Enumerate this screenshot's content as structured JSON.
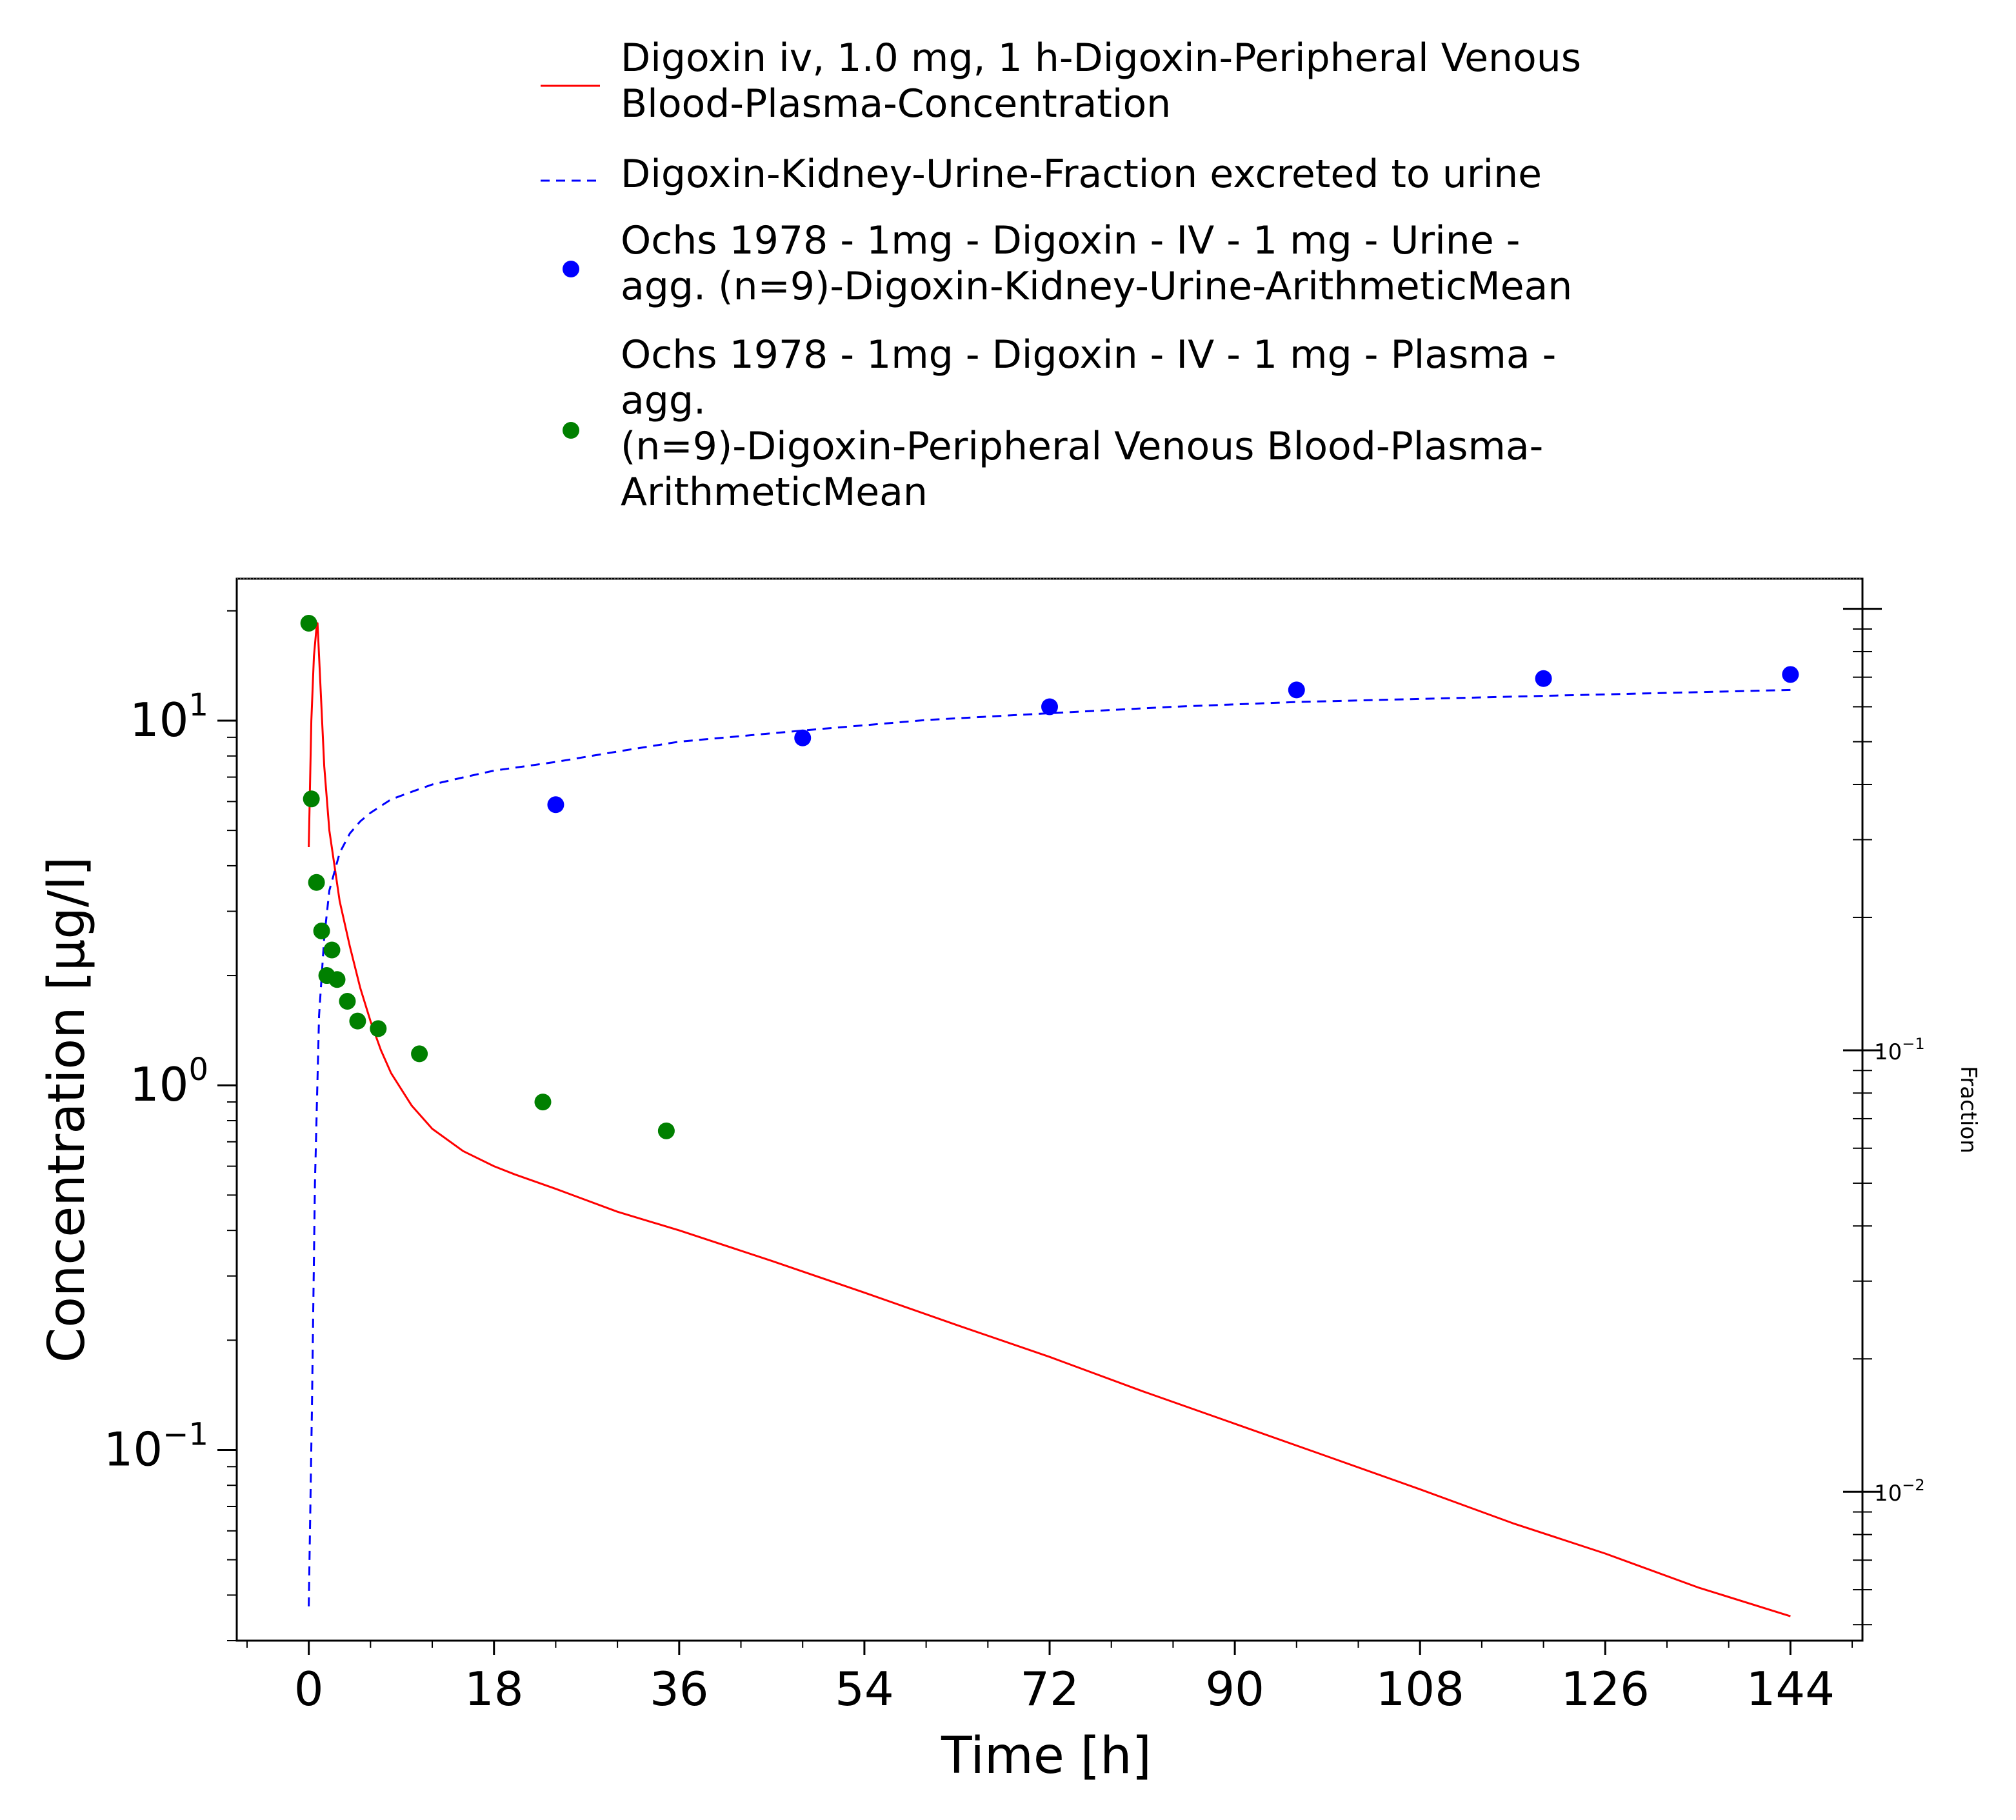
{
  "chart_data": {
    "type": "line",
    "title": "",
    "xlabel": "Time [h]",
    "ylabel": "Concentration [µg/l]",
    "y2label": "Fraction",
    "xlim": [
      -7,
      151
    ],
    "x_ticks": [
      "0",
      "18",
      "36",
      "54",
      "72",
      "90",
      "108",
      "126",
      "144"
    ],
    "y_scale": "log",
    "ylim": [
      0.03,
      24.5
    ],
    "y_ticks": [
      {
        "base": "10",
        "exp": "1",
        "value": 10
      },
      {
        "base": "10",
        "exp": "0",
        "value": 1
      },
      {
        "base": "10",
        "exp": "−1",
        "value": 0.1
      }
    ],
    "y2_scale": "log",
    "y2lim": [
      0.0046,
      1.17
    ],
    "y2_ticks": [
      {
        "base": "10",
        "exp": "−1",
        "value": 0.1
      },
      {
        "base": "10",
        "exp": "−2",
        "value": 0.01
      }
    ],
    "legend_position": "top",
    "legend": [
      {
        "lines": [
          "Digoxin iv, 1.0 mg, 1 h-Digoxin-Peripheral Venous",
          "Blood-Plasma-Concentration"
        ]
      },
      {
        "lines": [
          "Digoxin-Kidney-Urine-Fraction excreted to urine"
        ]
      },
      {
        "lines": [
          "Ochs 1978 - 1mg - Digoxin - IV - 1 mg - Urine -",
          "agg. (n=9)-Digoxin-Kidney-Urine-ArithmeticMean"
        ]
      },
      {
        "lines": [
          "Ochs 1978 - 1mg - Digoxin - IV - 1 mg - Plasma -",
          "agg.",
          "(n=9)-Digoxin-Peripheral Venous Blood-Plasma-",
          "ArithmeticMean"
        ]
      }
    ],
    "series": [
      {
        "kind": "line",
        "style": "solid",
        "color": "#ff0000",
        "axis": "left",
        "x": [
          0,
          0.25,
          0.5,
          0.75,
          0.85,
          1.0,
          1.5,
          2,
          3,
          4,
          5,
          6,
          7,
          8,
          10,
          12,
          15,
          18,
          20,
          24,
          30,
          36,
          45,
          54,
          63,
          72,
          81,
          90,
          99,
          108,
          117,
          126,
          135,
          144
        ],
        "y": [
          4.5,
          10,
          15,
          18,
          18.5,
          15,
          7.5,
          5.0,
          3.2,
          2.4,
          1.85,
          1.5,
          1.25,
          1.08,
          0.88,
          0.76,
          0.66,
          0.6,
          0.57,
          0.52,
          0.45,
          0.4,
          0.33,
          0.27,
          0.22,
          0.18,
          0.145,
          0.118,
          0.096,
          0.078,
          0.063,
          0.052,
          0.042,
          0.035
        ]
      },
      {
        "kind": "line",
        "style": "dashed",
        "color": "#0000ff",
        "axis": "right",
        "x": [
          0,
          0.3,
          0.6,
          1,
          1.5,
          2,
          3,
          4,
          5,
          6,
          8,
          10,
          12,
          15,
          18,
          24,
          30,
          36,
          48,
          60,
          72,
          84,
          96,
          108,
          120,
          132,
          144
        ],
        "y": [
          0.0055,
          0.015,
          0.05,
          0.12,
          0.18,
          0.23,
          0.28,
          0.31,
          0.33,
          0.345,
          0.37,
          0.385,
          0.4,
          0.415,
          0.43,
          0.45,
          0.475,
          0.5,
          0.53,
          0.56,
          0.58,
          0.6,
          0.615,
          0.625,
          0.635,
          0.645,
          0.655
        ]
      },
      {
        "kind": "scatter",
        "color": "#0000ff",
        "axis": "right",
        "x": [
          24,
          48,
          72,
          96,
          120,
          144
        ],
        "y": [
          0.36,
          0.51,
          0.6,
          0.655,
          0.695,
          0.71
        ]
      },
      {
        "kind": "scatter",
        "color": "#008000",
        "axis": "left",
        "x": [
          0,
          0.25,
          0.75,
          1.25,
          1.75,
          2.25,
          2.75,
          3.75,
          4.75,
          6.75,
          10.75,
          22.75,
          34.75
        ],
        "y": [
          18.5,
          6.1,
          3.6,
          2.65,
          2.0,
          2.35,
          1.95,
          1.7,
          1.5,
          1.43,
          1.22,
          0.9,
          0.75
        ]
      }
    ]
  }
}
